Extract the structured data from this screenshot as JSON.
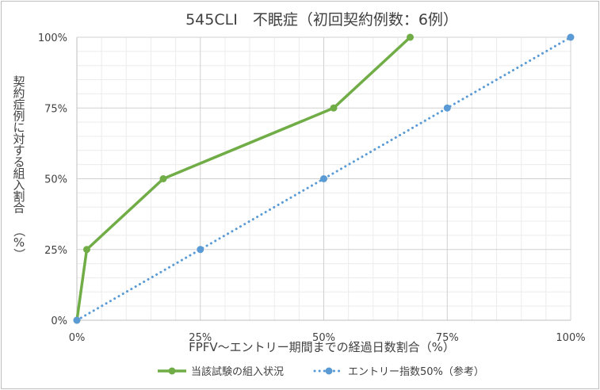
{
  "chart_data": {
    "type": "line",
    "title": "545CLI　不眠症（初回契約例数：6例）",
    "xlabel": "FPFV～エントリー期間までの経過日数割合（%）",
    "ylabel": "契約症例に対する組入割合　（%）",
    "xlim": [
      0,
      100
    ],
    "ylim": [
      0,
      100
    ],
    "x_ticks": [
      "0%",
      "25%",
      "50%",
      "75%",
      "100%"
    ],
    "y_ticks": [
      "0%",
      "25%",
      "50%",
      "75%",
      "100%"
    ],
    "grid": true,
    "legend_position": "bottom",
    "series": [
      {
        "name": "当該試験の組入状況",
        "color": "#70ad47",
        "style": "solid",
        "x": [
          0,
          2,
          17.5,
          52,
          67.5
        ],
        "y": [
          0,
          25,
          50,
          75,
          100
        ]
      },
      {
        "name": "エントリー指数50%（参考）",
        "color": "#5b9bd5",
        "style": "dotted",
        "x": [
          0,
          25,
          50,
          75,
          100
        ],
        "y": [
          0,
          25,
          50,
          75,
          100
        ]
      }
    ]
  }
}
